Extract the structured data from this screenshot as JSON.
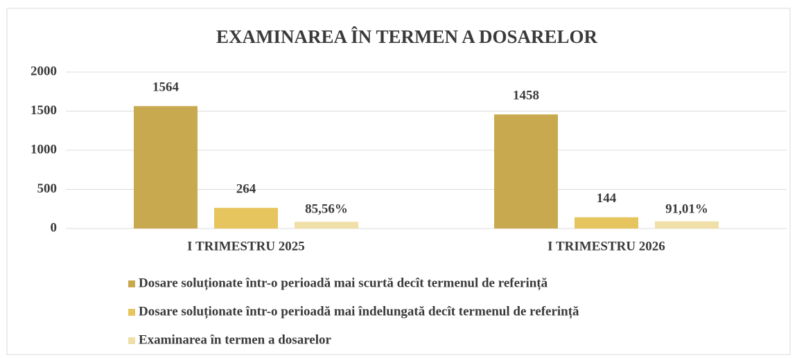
{
  "chart_data": {
    "type": "bar",
    "title": "EXAMINAREA ÎN TERMEN A DOSARELOR",
    "categories": [
      "I TRIMESTRU 2025",
      "I TRIMESTRU 2026"
    ],
    "series": [
      {
        "name": "Dosare soluționate într-o perioadă mai scurtă decît termenul de referință",
        "color": "#c9a94f",
        "values": [
          1564,
          1458
        ]
      },
      {
        "name": "Dosare soluționate într-o perioadă mai îndelungată decît termenul de referință",
        "color": "#e6c45e",
        "values": [
          264,
          144
        ]
      },
      {
        "name": "Examinarea în termen a dosarelor",
        "color": "#f1dfa8",
        "values": [
          85.56,
          91.01
        ],
        "value_labels": [
          "85,56%",
          "91,01%"
        ]
      }
    ],
    "ylim": [
      0,
      2000
    ],
    "yticks": [
      0,
      500,
      1000,
      1500,
      2000
    ],
    "grid": true
  }
}
